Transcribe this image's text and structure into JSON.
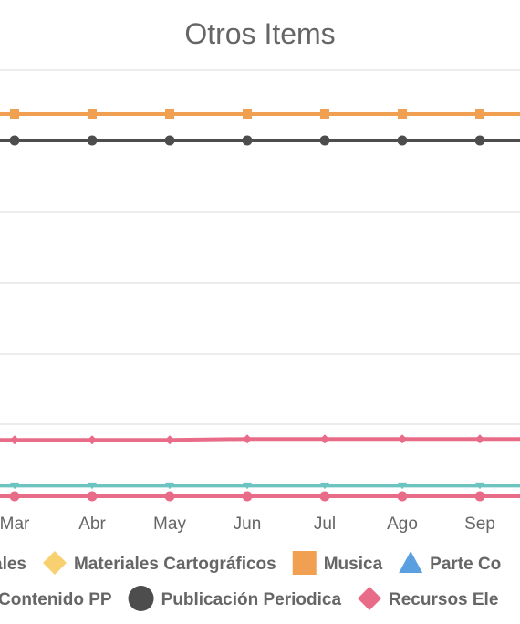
{
  "chart_data": {
    "type": "line",
    "title": "Otros Items",
    "categories": [
      "Mar",
      "Abr",
      "May",
      "Jun",
      "Jul",
      "Ago",
      "Sep"
    ],
    "grid": true,
    "legend_position": "bottom",
    "series": [
      {
        "name": "Musica",
        "color": "#f0a050",
        "marker": "square",
        "values": [
          580,
          580,
          580,
          580,
          580,
          580,
          580
        ]
      },
      {
        "name": "Publicación Periodica",
        "color": "#4d4d4d",
        "marker": "circle",
        "values": [
          550,
          550,
          550,
          550,
          550,
          550,
          550
        ]
      },
      {
        "name": "Recursos Ele",
        "color": "#e86c88",
        "marker": "diamond",
        "values": [
          210,
          210,
          210,
          211,
          211,
          211,
          211
        ]
      },
      {
        "name": "",
        "color": "#6cc4c0",
        "marker": "triangle-down",
        "values": [
          158,
          158,
          158,
          158,
          158,
          158,
          158
        ]
      },
      {
        "name": "",
        "color": "#e86c88",
        "marker": "circle",
        "values": [
          146,
          146,
          146,
          146,
          146,
          146,
          146
        ]
      }
    ],
    "legend_rows": [
      [
        {
          "label": "ales",
          "marker": "none",
          "color": "#999999"
        },
        {
          "label": "Materiales Cartográficos",
          "marker": "diamond",
          "color": "#f8d070"
        },
        {
          "label": "Musica",
          "marker": "square",
          "color": "#f0a050"
        },
        {
          "label": "Parte Co",
          "marker": "triangle",
          "color": "#5aa0e0"
        }
      ],
      [
        {
          "label": "Contenido PP",
          "marker": "none",
          "color": "#999999"
        },
        {
          "label": "Publicación Periodica",
          "marker": "circle",
          "color": "#4d4d4d"
        },
        {
          "label": "Recursos Ele",
          "marker": "diamond",
          "color": "#e86c88"
        }
      ]
    ]
  }
}
